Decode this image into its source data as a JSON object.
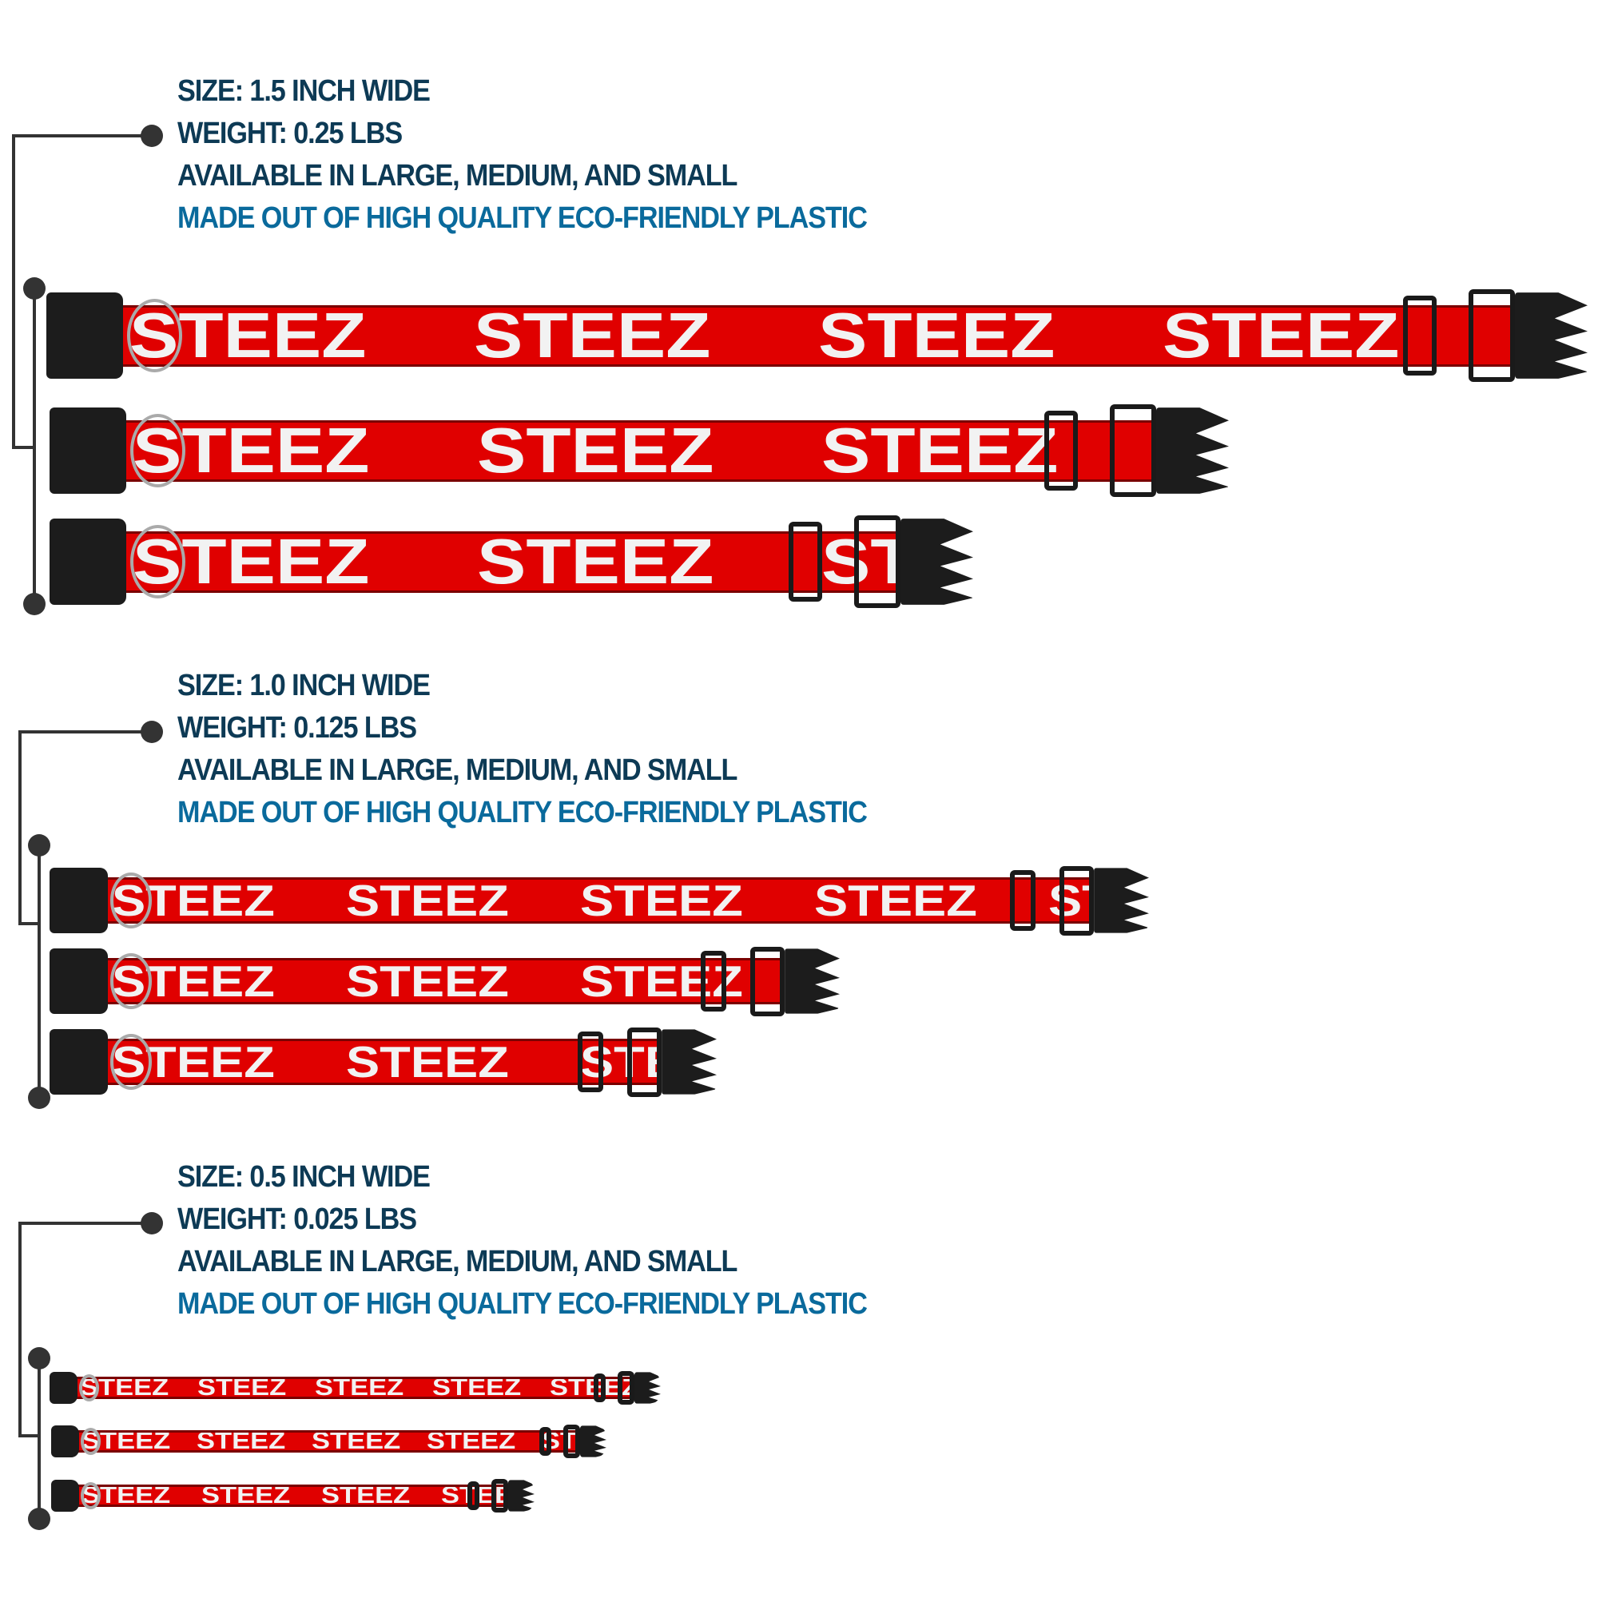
{
  "brand_print": "STEEZ",
  "colors": {
    "heading": "#0d3a55",
    "accent": "#0a6a9c",
    "strap": "#e00000",
    "hardware": "#1c1c1c"
  },
  "sections": [
    {
      "size": "SIZE: 1.5 INCH WIDE",
      "weight": "WEIGHT: 0.25 LBS",
      "availability": "AVAILABLE IN LARGE, MEDIUM, AND SMALL",
      "material": "MADE OUT OF HIGH QUALITY ECO-FRIENDLY PLASTIC",
      "collars": [
        "large",
        "medium",
        "small"
      ]
    },
    {
      "size": "SIZE: 1.0 INCH WIDE",
      "weight": "WEIGHT: 0.125 LBS",
      "availability": "AVAILABLE IN LARGE, MEDIUM, AND SMALL",
      "material": "MADE OUT OF HIGH QUALITY ECO-FRIENDLY PLASTIC",
      "collars": [
        "large",
        "medium",
        "small"
      ]
    },
    {
      "size": "SIZE: 0.5 INCH WIDE",
      "weight": "WEIGHT: 0.025 LBS",
      "availability": "AVAILABLE IN LARGE, MEDIUM, AND SMALL",
      "material": "MADE OUT OF HIGH QUALITY ECO-FRIENDLY PLASTIC",
      "collars": [
        "large",
        "medium",
        "small"
      ]
    }
  ]
}
